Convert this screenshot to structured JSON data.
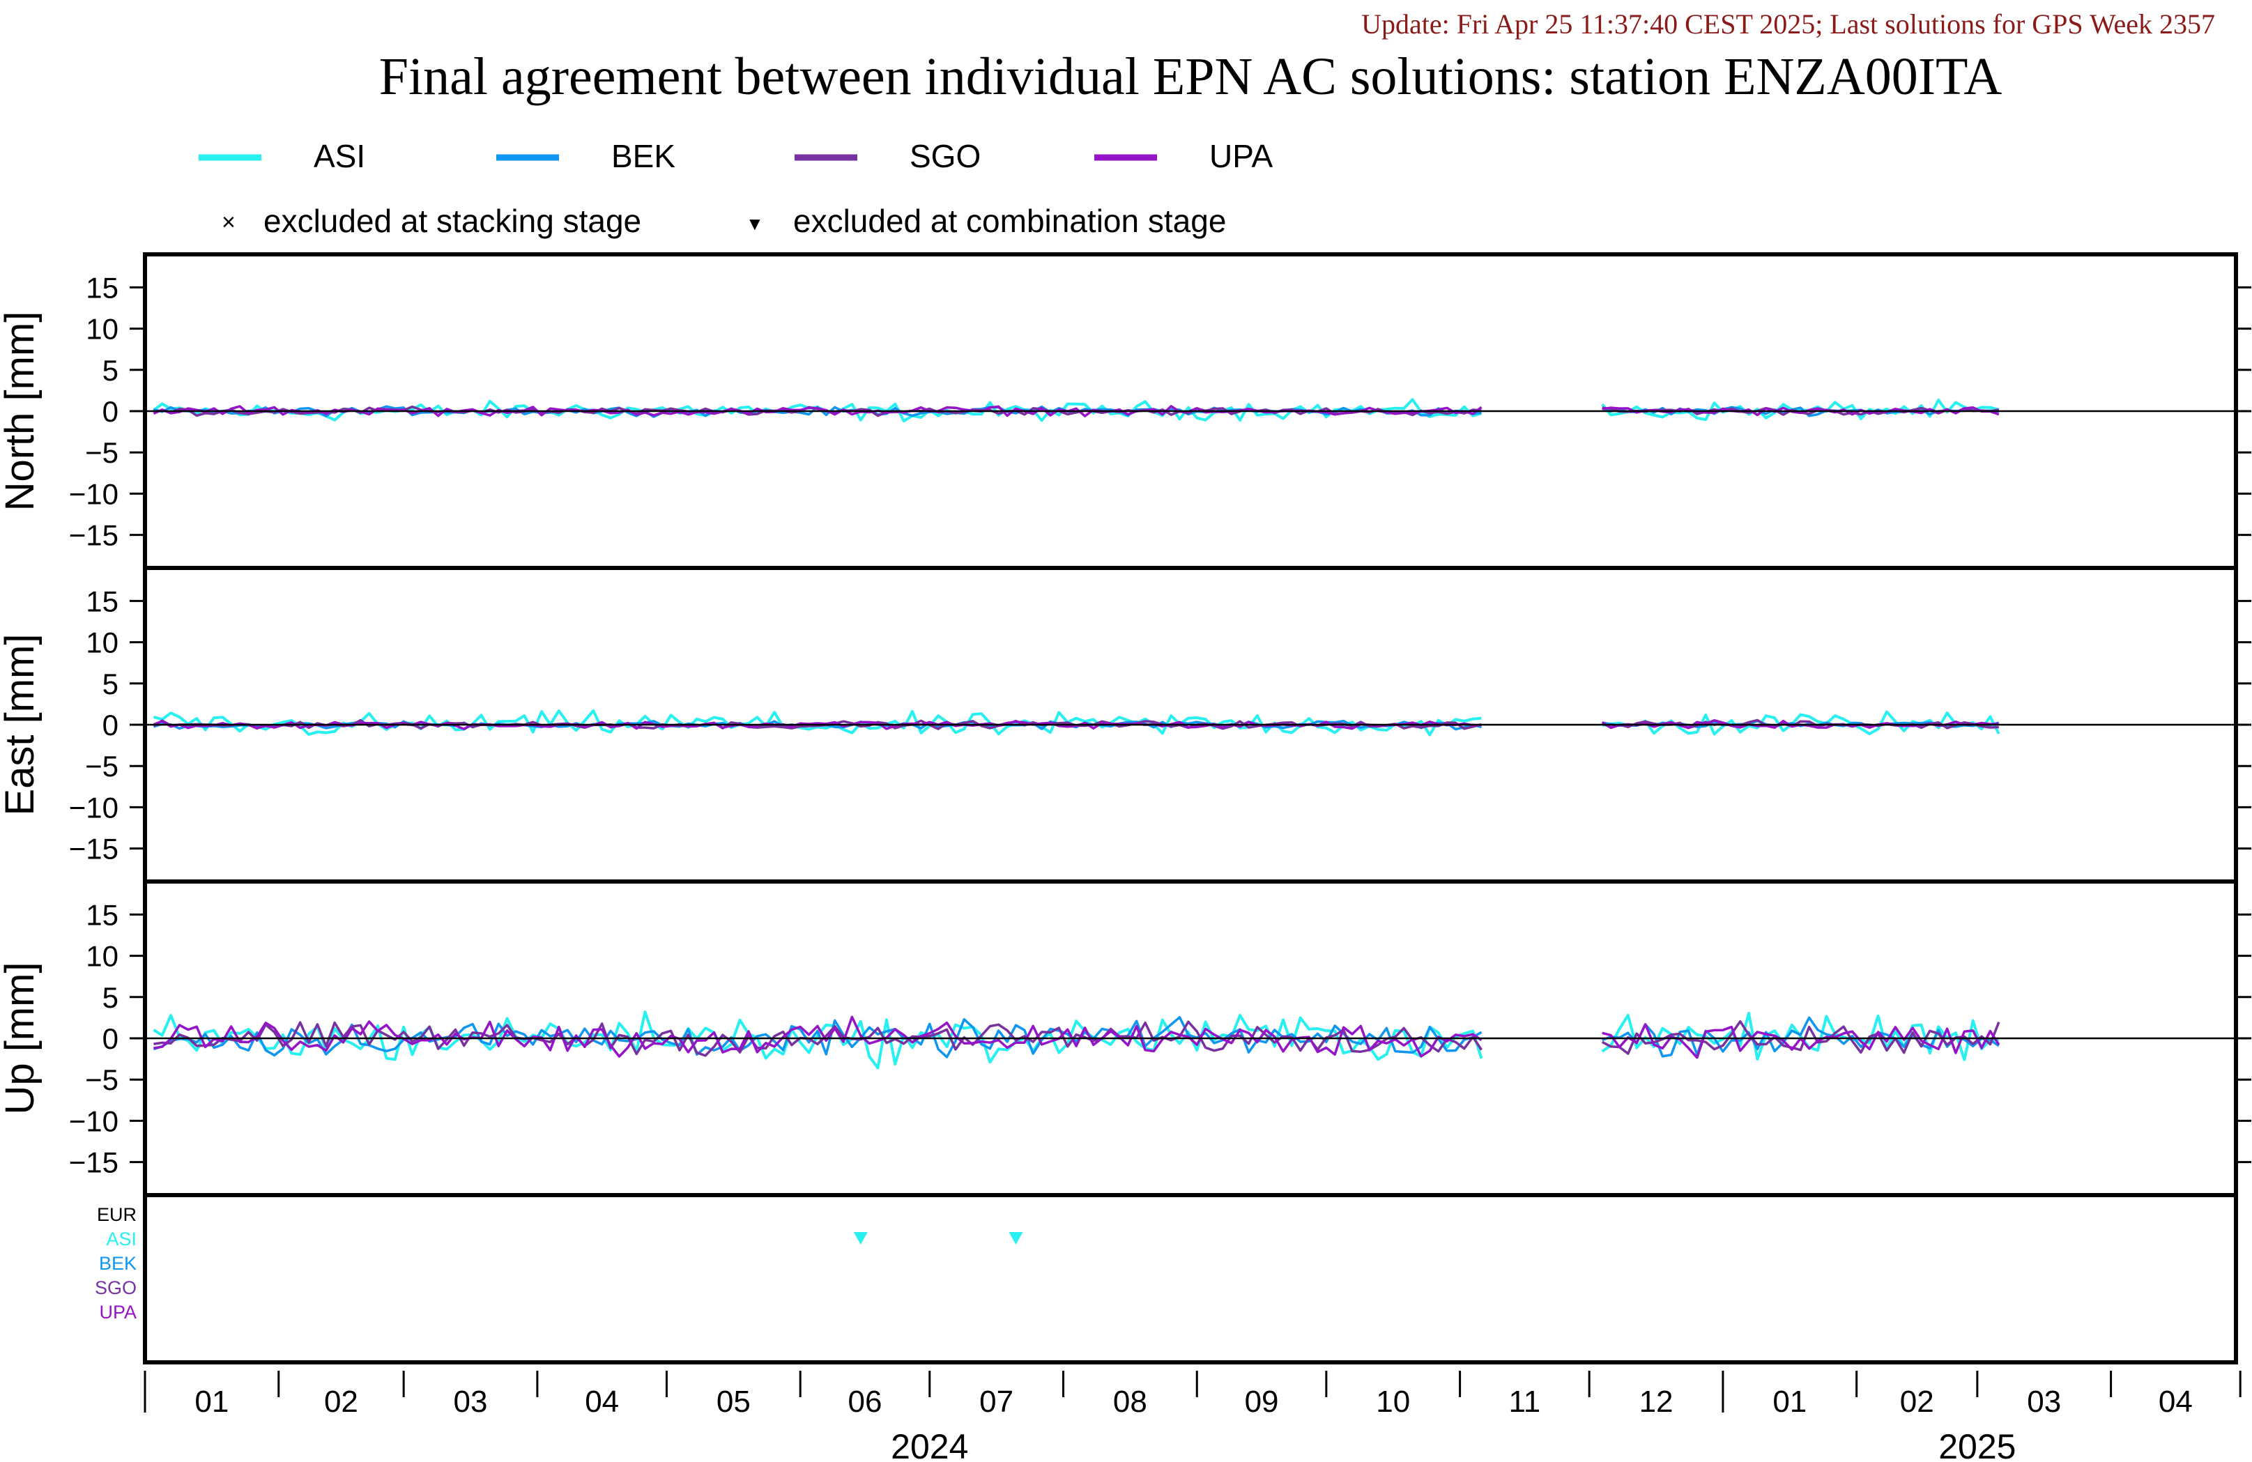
{
  "header": {
    "update_text": "Update: Fri Apr 25 11:37:40 CEST 2025; Last solutions for GPS Week 2357",
    "title": "Final agreement between individual EPN AC solutions: station ENZA00ITA"
  },
  "legend": {
    "series": [
      {
        "name": "ASI",
        "color": "#28f0f0"
      },
      {
        "name": "BEK",
        "color": "#0f96f0"
      },
      {
        "name": "SGO",
        "color": "#7832a0"
      },
      {
        "name": "UPA",
        "color": "#9614c8"
      }
    ],
    "markers": [
      {
        "symbol": "×",
        "label": "excluded at stacking stage"
      },
      {
        "symbol": "▼",
        "label": "excluded at combination stage"
      }
    ]
  },
  "chart_data": {
    "type": "line",
    "x_range": [
      "2024-01-01",
      "2025-04-30"
    ],
    "months": [
      "01",
      "02",
      "03",
      "04",
      "05",
      "06",
      "07",
      "08",
      "09",
      "10",
      "11",
      "12",
      "01",
      "02",
      "03",
      "04"
    ],
    "years": [
      "2024",
      "2025"
    ],
    "gaps": [
      [
        "2024-11-08",
        "2024-11-18"
      ],
      [
        "2024-11-21",
        "2024-12-02"
      ]
    ],
    "series_colors": {
      "ASI": "#28f0f0",
      "BEK": "#0f96f0",
      "SGO": "#7832a0",
      "UPA": "#9614c8"
    },
    "panels": [
      {
        "ylabel": "North [mm]",
        "ylim": [
          -19,
          19
        ],
        "yticks": [
          15,
          10,
          5,
          0,
          -5,
          -10,
          -15
        ],
        "amplitude": {
          "ASI": 0.75,
          "BEK": 0.35,
          "SGO": 0.3,
          "UPA": 0.35
        }
      },
      {
        "ylabel": "East [mm]",
        "ylim": [
          -19,
          19
        ],
        "yticks": [
          15,
          10,
          5,
          0,
          -5,
          -10,
          -15
        ],
        "amplitude": {
          "ASI": 1.0,
          "BEK": 0.3,
          "SGO": 0.3,
          "UPA": 0.3
        }
      },
      {
        "ylabel": "Up [mm]",
        "ylim": [
          -19,
          19
        ],
        "yticks": [
          15,
          10,
          5,
          0,
          -5,
          -10,
          -15
        ],
        "amplitude": {
          "ASI": 1.9,
          "BEK": 1.4,
          "SGO": 1.2,
          "UPA": 1.4
        }
      }
    ],
    "exclusion_panel": {
      "rows": [
        {
          "label": "EUR",
          "color": "#000000"
        },
        {
          "label": "ASI",
          "color": "#28f0f0"
        },
        {
          "label": "BEK",
          "color": "#0f96f0"
        },
        {
          "label": "SGO",
          "color": "#7832a0"
        },
        {
          "label": "UPA",
          "color": "#9614c8"
        }
      ],
      "combination_exclusions": [
        {
          "series": "ASI",
          "date": "2024-06-15"
        },
        {
          "series": "ASI",
          "date": "2024-07-21"
        }
      ]
    }
  }
}
